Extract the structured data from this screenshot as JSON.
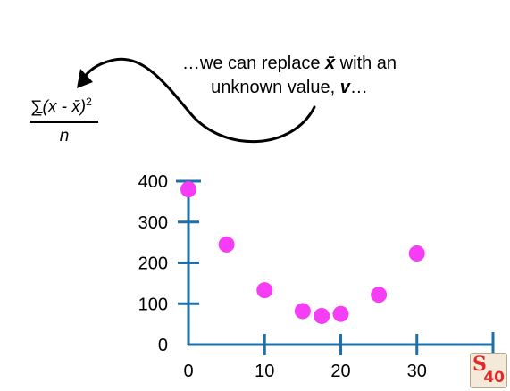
{
  "formula": {
    "sigma": "∑",
    "numerator": "(x - x̄)",
    "exponent": "2",
    "denominator": "n"
  },
  "annotation": {
    "line1_prefix": "…we can replace ",
    "line1_symbol": "x̄",
    "line1_suffix": " with an",
    "line2_prefix": "unknown value, ",
    "line2_symbol": "v",
    "line2_suffix": "…"
  },
  "logo": {
    "letter": "S",
    "number": "40"
  },
  "colors": {
    "axis": "#1f6fa8",
    "points": "#f53df5",
    "text": "#000000",
    "arrow": "#000000"
  },
  "chart_data": {
    "type": "scatter",
    "title": "",
    "xlabel": "",
    "ylabel": "",
    "xlim": [
      0,
      40
    ],
    "ylim": [
      0,
      400
    ],
    "x_ticks": [
      0,
      10,
      20,
      30
    ],
    "y_ticks": [
      0,
      100,
      200,
      300,
      400
    ],
    "grid": false,
    "points": [
      {
        "x": 0,
        "y": 380
      },
      {
        "x": 5,
        "y": 245
      },
      {
        "x": 10,
        "y": 133
      },
      {
        "x": 15,
        "y": 82
      },
      {
        "x": 17.5,
        "y": 70
      },
      {
        "x": 20,
        "y": 75
      },
      {
        "x": 25,
        "y": 122
      },
      {
        "x": 30,
        "y": 223
      }
    ]
  }
}
